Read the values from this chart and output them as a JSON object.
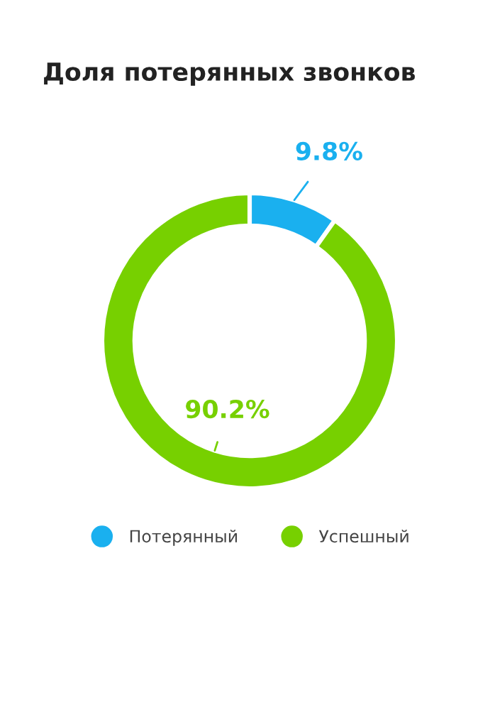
{
  "chart_data": {
    "type": "donut",
    "title": "Доля потерянных звонков",
    "categories": [
      "Потерянный",
      "Успешный"
    ],
    "values": [
      9.8,
      90.2
    ],
    "colors": [
      "#1ab0ef",
      "#77d000"
    ],
    "value_labels": [
      "9.8%",
      "90.2%"
    ],
    "legend": "bottom"
  }
}
